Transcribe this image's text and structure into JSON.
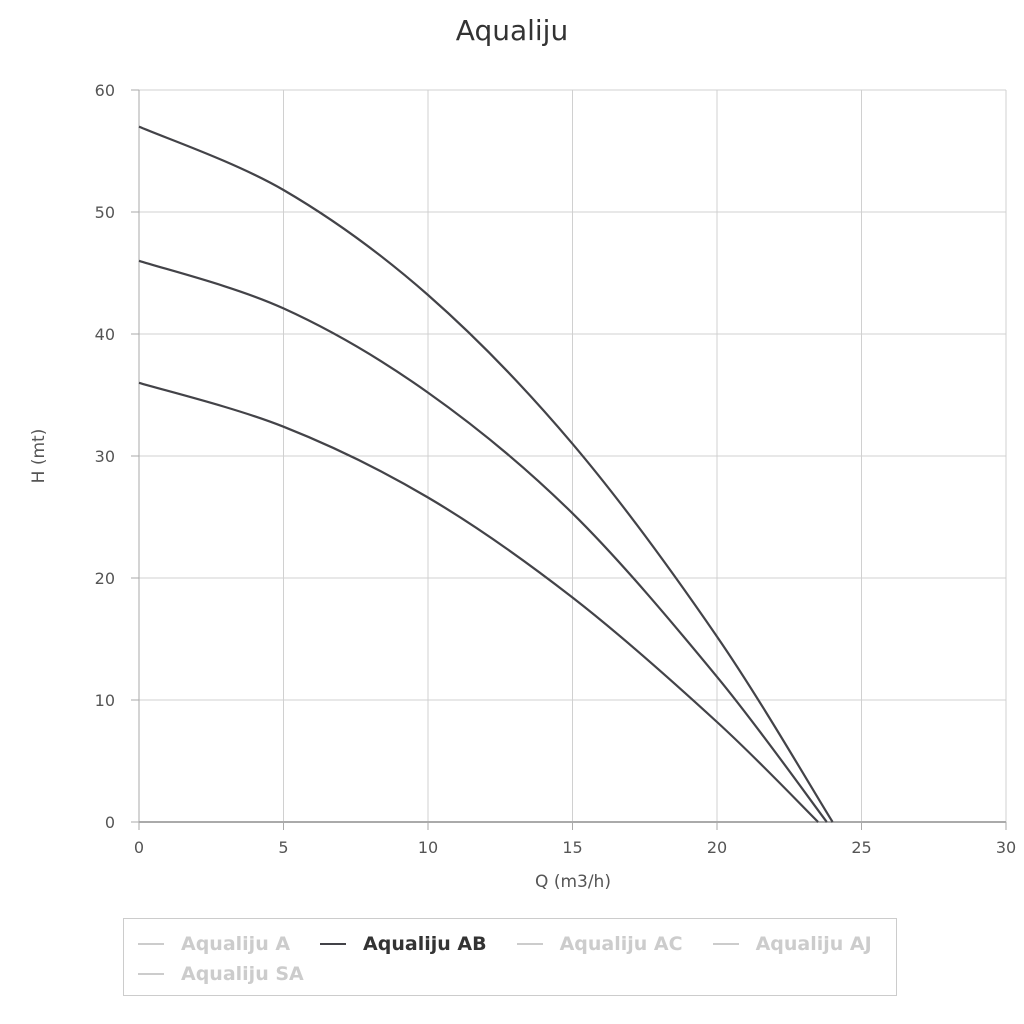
{
  "chart_data": {
    "type": "line",
    "title": "Aqualiju",
    "xlabel": "Q (m3/h)",
    "ylabel": "H (mt)",
    "xlim": [
      0,
      30
    ],
    "ylim": [
      0,
      60
    ],
    "x_ticks": [
      "0",
      "5",
      "10",
      "15",
      "20",
      "25",
      "30"
    ],
    "y_ticks": [
      "0",
      "10",
      "20",
      "30",
      "40",
      "50",
      "60"
    ],
    "grid": true,
    "legend_position": "bottom",
    "series": [
      {
        "name": "Aqualiju AB",
        "color": "#434348",
        "points": [
          [
            0,
            57
          ],
          [
            5,
            51.8
          ],
          [
            10,
            43.2
          ],
          [
            15,
            31
          ],
          [
            20,
            15.2
          ],
          [
            24,
            0
          ]
        ]
      },
      {
        "name": "Aqualiju AB",
        "color": "#434348",
        "points": [
          [
            0,
            46
          ],
          [
            5,
            42.1
          ],
          [
            10,
            35.2
          ],
          [
            15,
            25.3
          ],
          [
            20,
            11.9
          ],
          [
            23.8,
            0
          ]
        ]
      },
      {
        "name": "Aqualiju AB",
        "color": "#434348",
        "points": [
          [
            0,
            36
          ],
          [
            5,
            32.4
          ],
          [
            10,
            26.6
          ],
          [
            15,
            18.4
          ],
          [
            20,
            8.2
          ],
          [
            23.5,
            0
          ]
        ]
      }
    ]
  },
  "legend": {
    "rows": [
      [
        {
          "label": "Aqualiju A",
          "active": false,
          "color": "#cccccc"
        },
        {
          "label": "Aqualiju AB",
          "active": true,
          "color": "#434348"
        },
        {
          "label": "Aqualiju AC",
          "active": false,
          "color": "#cccccc"
        },
        {
          "label": "Aqualiju AJ",
          "active": false,
          "color": "#cccccc"
        }
      ],
      [
        {
          "label": "Aqualiju SA",
          "active": false,
          "color": "#cccccc"
        }
      ]
    ]
  }
}
